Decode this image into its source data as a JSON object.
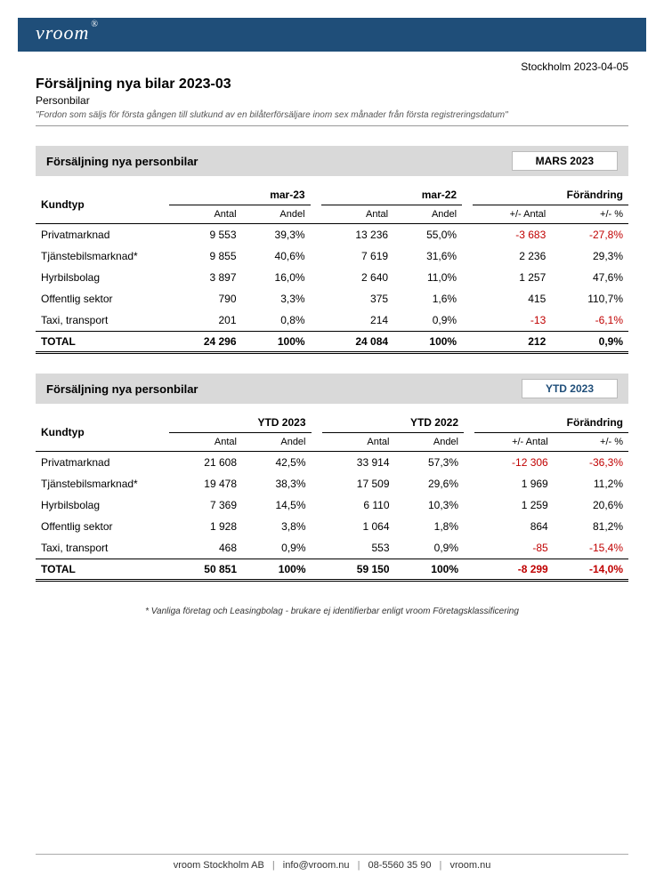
{
  "header": {
    "logo_text": "vroom",
    "logo_mark": "®",
    "date_location": "Stockholm 2023-04-05"
  },
  "titleBlock": {
    "title": "Försäljning nya bilar 2023-03",
    "subtitle": "Personbilar",
    "note": "\"Fordon som säljs för första gången till slutkund av en bilåterförsäljare inom sex månader från första registreringsdatum\""
  },
  "table1": {
    "section_title": "Försäljning nya personbilar",
    "badge": "MARS 2023",
    "badge_color": "#000000",
    "col_kundtyp": "Kundtyp",
    "group_current": "mar-23",
    "group_prev": "mar-22",
    "group_change": "Förändring",
    "sub_antal": "Antal",
    "sub_andel": "Andel",
    "sub_pm_antal": "+/- Antal",
    "sub_pm_pct": "+/- %",
    "rows": [
      {
        "label": "Privatmarknad",
        "a1": "9 553",
        "p1": "39,3%",
        "a2": "13 236",
        "p2": "55,0%",
        "d": "-3 683",
        "dp": "-27,8%",
        "neg": true
      },
      {
        "label": "Tjänstebilsmarknad*",
        "a1": "9 855",
        "p1": "40,6%",
        "a2": "7 619",
        "p2": "31,6%",
        "d": "2 236",
        "dp": "29,3%",
        "neg": false
      },
      {
        "label": "Hyrbilsbolag",
        "a1": "3 897",
        "p1": "16,0%",
        "a2": "2 640",
        "p2": "11,0%",
        "d": "1 257",
        "dp": "47,6%",
        "neg": false
      },
      {
        "label": "Offentlig sektor",
        "a1": "790",
        "p1": "3,3%",
        "a2": "375",
        "p2": "1,6%",
        "d": "415",
        "dp": "110,7%",
        "neg": false
      },
      {
        "label": "Taxi, transport",
        "a1": "201",
        "p1": "0,8%",
        "a2": "214",
        "p2": "0,9%",
        "d": "-13",
        "dp": "-6,1%",
        "neg": true
      }
    ],
    "total": {
      "label": "TOTAL",
      "a1": "24 296",
      "p1": "100%",
      "a2": "24 084",
      "p2": "100%",
      "d": "212",
      "dp": "0,9%",
      "neg": false
    }
  },
  "table2": {
    "section_title": "Försäljning nya personbilar",
    "badge": "YTD 2023",
    "badge_color": "#1f4e79",
    "col_kundtyp": "Kundtyp",
    "group_current": "YTD 2023",
    "group_prev": "YTD 2022",
    "group_change": "Förändring",
    "sub_antal": "Antal",
    "sub_andel": "Andel",
    "sub_pm_antal": "+/- Antal",
    "sub_pm_pct": "+/- %",
    "rows": [
      {
        "label": "Privatmarknad",
        "a1": "21 608",
        "p1": "42,5%",
        "a2": "33 914",
        "p2": "57,3%",
        "d": "-12 306",
        "dp": "-36,3%",
        "neg": true
      },
      {
        "label": "Tjänstebilsmarknad*",
        "a1": "19 478",
        "p1": "38,3%",
        "a2": "17 509",
        "p2": "29,6%",
        "d": "1 969",
        "dp": "11,2%",
        "neg": false
      },
      {
        "label": "Hyrbilsbolag",
        "a1": "7 369",
        "p1": "14,5%",
        "a2": "6 110",
        "p2": "10,3%",
        "d": "1 259",
        "dp": "20,6%",
        "neg": false
      },
      {
        "label": "Offentlig sektor",
        "a1": "1 928",
        "p1": "3,8%",
        "a2": "1 064",
        "p2": "1,8%",
        "d": "864",
        "dp": "81,2%",
        "neg": false
      },
      {
        "label": "Taxi, transport",
        "a1": "468",
        "p1": "0,9%",
        "a2": "553",
        "p2": "0,9%",
        "d": "-85",
        "dp": "-15,4%",
        "neg": true
      }
    ],
    "total": {
      "label": "TOTAL",
      "a1": "50 851",
      "p1": "100%",
      "a2": "59 150",
      "p2": "100%",
      "d": "-8 299",
      "dp": "-14,0%",
      "neg": true
    }
  },
  "footnote": "* Vanliga företag och Leasingbolag - brukare ej identifierbar enligt vroom Företagsklassificering",
  "footer": {
    "company": "vroom Stockholm AB",
    "email": "info@vroom.nu",
    "phone": "08-5560 35 90",
    "site": "vroom.nu"
  },
  "colors": {
    "header_bg": "#1f4e79",
    "section_bg": "#d9d9d9",
    "negative": "#c00000"
  }
}
